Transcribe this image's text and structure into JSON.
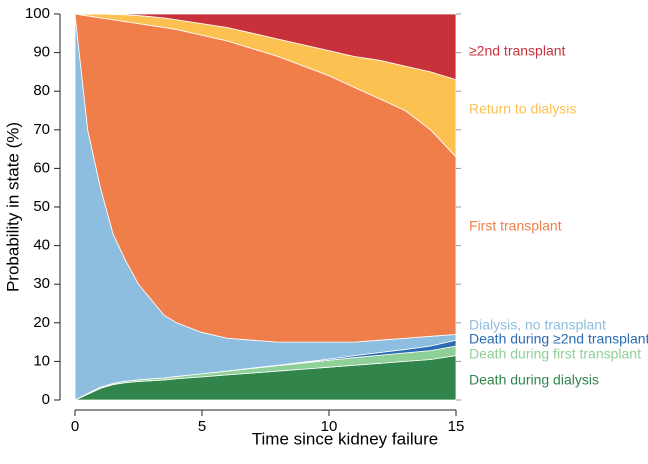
{
  "chart_data": {
    "type": "stacked_area",
    "x_label": "Time since kidney failure",
    "y_label": "Probability in state (%)",
    "x": [
      0,
      0.5,
      1,
      1.5,
      2,
      2.5,
      3,
      3.5,
      4,
      5,
      6,
      7,
      8,
      9,
      10,
      11,
      12,
      13,
      14,
      15
    ],
    "xlim": [
      0,
      15
    ],
    "xticks": [
      0,
      5,
      10,
      15
    ],
    "ylim": [
      0,
      100
    ],
    "yticks": [
      0,
      10,
      20,
      30,
      40,
      50,
      60,
      70,
      80,
      90,
      100
    ],
    "series": [
      {
        "name": "Death during dialysis",
        "color": "#31854a",
        "values": [
          0,
          1.5,
          3,
          4,
          4.5,
          4.8,
          5,
          5.2,
          5.5,
          6,
          6.5,
          7,
          7.5,
          8,
          8.5,
          9,
          9.5,
          10,
          10.5,
          11.5
        ]
      },
      {
        "name": "Death during first transplant",
        "color": "#8fcf98",
        "values": [
          0,
          0.2,
          0.3,
          0.3,
          0.4,
          0.4,
          0.5,
          0.5,
          0.6,
          0.8,
          1,
          1.2,
          1.4,
          1.6,
          1.8,
          2,
          2.1,
          2.2,
          2.3,
          2.5
        ]
      },
      {
        "name": "Death during ≥2nd transplant",
        "color": "#2a6bb3",
        "values": [
          0,
          0,
          0,
          0,
          0,
          0,
          0,
          0,
          0,
          0,
          0,
          0.1,
          0.1,
          0.2,
          0.3,
          0.5,
          0.7,
          0.9,
          1.2,
          1.5
        ]
      },
      {
        "name": "Dialysis, no transplant",
        "color": "#8dbedf",
        "values": [
          100,
          68.3,
          51.7,
          38.7,
          31.1,
          24.8,
          20.5,
          16.3,
          13.9,
          10.7,
          8.5,
          7.2,
          6,
          5.2,
          4.4,
          3.5,
          3.2,
          2.9,
          2.5,
          1.5
        ]
      },
      {
        "name": "First transplant",
        "color": "#f07e4a",
        "values": [
          0,
          29.5,
          44,
          55.5,
          62,
          67.5,
          71,
          74.5,
          76,
          77,
          77,
          75.5,
          74,
          71.5,
          69,
          66,
          62.5,
          59,
          53.5,
          46
        ]
      },
      {
        "name": "Return to dialysis",
        "color": "#fdc152",
        "values": [
          0,
          0.5,
          1,
          1.4,
          1.8,
          2.1,
          2.3,
          2.5,
          2.5,
          3,
          3.5,
          4,
          4.5,
          5.5,
          6.5,
          8,
          10,
          11.5,
          15,
          20
        ]
      },
      {
        "name": "≥2nd transplant",
        "color": "#c8313a",
        "values": [
          0,
          0,
          0,
          0.1,
          0.2,
          0.4,
          0.7,
          1,
          1.5,
          2.5,
          3.5,
          5,
          6.5,
          8,
          9.5,
          11,
          12,
          13.5,
          15,
          17
        ]
      }
    ]
  }
}
